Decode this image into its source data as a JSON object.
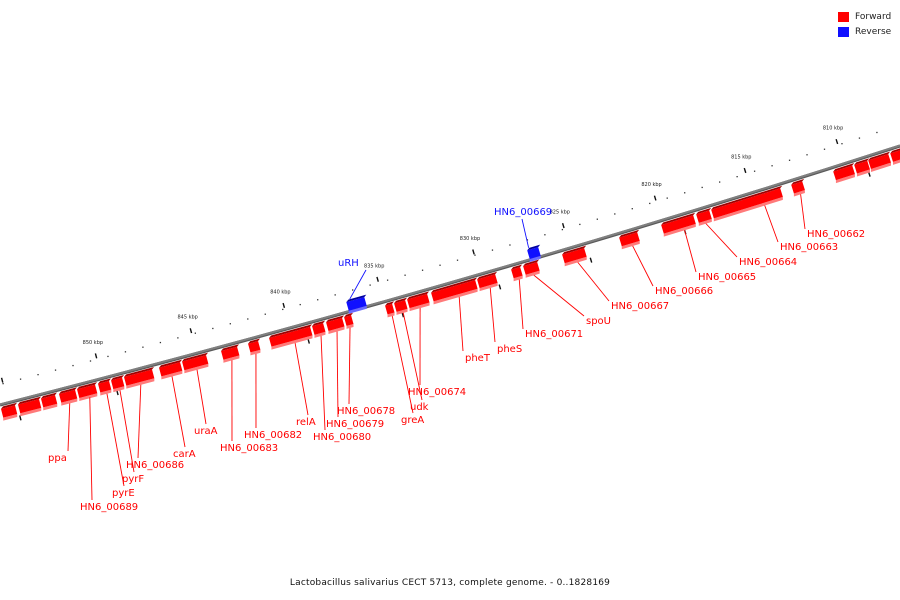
{
  "legend": {
    "items": [
      {
        "label": "Forward",
        "color": "#ff0000"
      },
      {
        "label": "Reverse",
        "color": "#1010ff"
      }
    ]
  },
  "caption": "Lactobacillus salivarius CECT 5713, complete genome. - 0..1828169",
  "ticks": [
    "810 kbp",
    "815 kbp",
    "820 kbp",
    "825 kbp",
    "830 kbp",
    "835 kbp",
    "840 kbp",
    "845 kbp",
    "850 kbp"
  ],
  "colors": {
    "forward": "#ff0000",
    "forward_dark": "#a00000",
    "forward_light": "#ff7a7a",
    "reverse": "#1010ff",
    "reverse_dark": "#0000a0",
    "axis": "#808080"
  },
  "genes": [
    {
      "label": "HN6_00662",
      "strand": "forward"
    },
    {
      "label": "HN6_00663",
      "strand": "forward"
    },
    {
      "label": "HN6_00664",
      "strand": "forward"
    },
    {
      "label": "HN6_00665",
      "strand": "forward"
    },
    {
      "label": "HN6_00666",
      "strand": "forward"
    },
    {
      "label": "HN6_00667",
      "strand": "forward"
    },
    {
      "label": "spoU",
      "strand": "forward"
    },
    {
      "label": "HN6_00671",
      "strand": "forward"
    },
    {
      "label": "pheS",
      "strand": "forward"
    },
    {
      "label": "pheT",
      "strand": "forward"
    },
    {
      "label": "HN6_00674",
      "strand": "forward"
    },
    {
      "label": "udk",
      "strand": "forward"
    },
    {
      "label": "greA",
      "strand": "forward"
    },
    {
      "label": "HN6_00678",
      "strand": "forward"
    },
    {
      "label": "HN6_00679",
      "strand": "forward"
    },
    {
      "label": "HN6_00680",
      "strand": "forward"
    },
    {
      "label": "relA",
      "strand": "forward"
    },
    {
      "label": "HN6_00682",
      "strand": "forward"
    },
    {
      "label": "HN6_00683",
      "strand": "forward"
    },
    {
      "label": "uraA",
      "strand": "forward"
    },
    {
      "label": "carA",
      "strand": "forward"
    },
    {
      "label": "HN6_00686",
      "strand": "forward"
    },
    {
      "label": "pyrF",
      "strand": "forward"
    },
    {
      "label": "pyrE",
      "strand": "forward"
    },
    {
      "label": "HN6_00689",
      "strand": "forward"
    },
    {
      "label": "ppa",
      "strand": "forward"
    },
    {
      "label": "HN6_00669",
      "strand": "reverse"
    },
    {
      "label": "uRH",
      "strand": "reverse"
    }
  ]
}
